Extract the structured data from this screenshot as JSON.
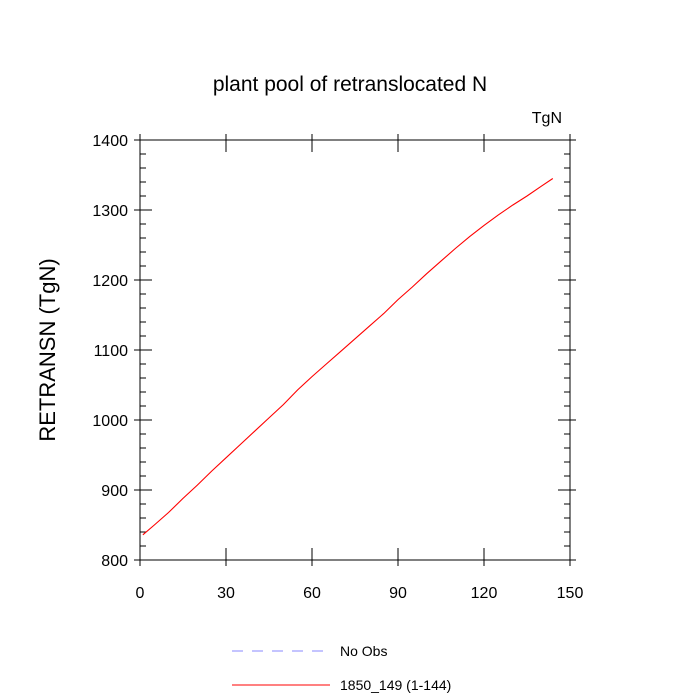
{
  "chart_data": {
    "type": "line",
    "title": "plant pool of retranslocated N",
    "units_label": "TgN",
    "ylabel": "RETRANSN  (TgN)",
    "xlabel": "",
    "xlim": [
      0,
      150
    ],
    "ylim": [
      800,
      1400
    ],
    "xticks": [
      0,
      30,
      60,
      90,
      120,
      150
    ],
    "yticks": [
      800,
      900,
      1000,
      1100,
      1200,
      1300,
      1400
    ],
    "grid": false,
    "legend_position": "bottom",
    "legend": [
      {
        "label": "No Obs",
        "color": "#8888ff",
        "style": "dashed"
      },
      {
        "label": "1850_149 (1-144)",
        "color": "#ff0000",
        "style": "solid"
      }
    ],
    "series": [
      {
        "name": "1850_149 (1-144)",
        "color": "#ff0000",
        "x": [
          1,
          5,
          10,
          15,
          20,
          25,
          30,
          35,
          40,
          45,
          50,
          55,
          60,
          65,
          70,
          75,
          80,
          85,
          90,
          95,
          100,
          105,
          110,
          115,
          120,
          125,
          130,
          135,
          140,
          144
        ],
        "y": [
          836,
          850,
          868,
          888,
          907,
          927,
          946,
          965,
          984,
          1003,
          1022,
          1043,
          1062,
          1080,
          1098,
          1116,
          1134,
          1152,
          1172,
          1190,
          1209,
          1227,
          1245,
          1262,
          1278,
          1293,
          1307,
          1320,
          1334,
          1345
        ]
      }
    ]
  }
}
